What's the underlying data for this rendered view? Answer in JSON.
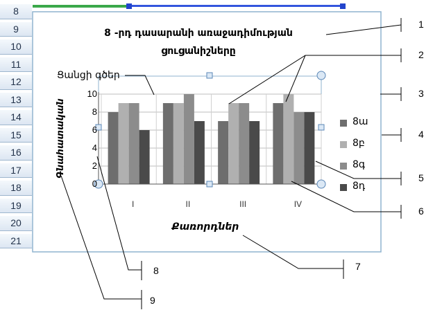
{
  "spreadsheet": {
    "row_numbers": [
      "8",
      "9",
      "10",
      "11",
      "12",
      "13",
      "14",
      "15",
      "16",
      "17",
      "18",
      "19",
      "20",
      "21"
    ]
  },
  "callouts": [
    "1",
    "2",
    "3",
    "4",
    "5",
    "6",
    "7",
    "8",
    "9"
  ],
  "chart_data": {
    "type": "bar",
    "title": "8 -րդ դասարանի առաջադիմության ցուցանիշները",
    "title_annotation": "Ցանցի գծեր",
    "xlabel": "Քառորդներ",
    "ylabel": "Գնահատական",
    "categories": [
      "I",
      "II",
      "III",
      "IV"
    ],
    "ylim": [
      0,
      10
    ],
    "yticks": [
      "0",
      "2",
      "4",
      "6",
      "8",
      "10"
    ],
    "grid": true,
    "legend_position": "right",
    "series": [
      {
        "name": "8ա",
        "color": "#6e6e6e",
        "values": [
          8,
          9,
          7,
          9
        ]
      },
      {
        "name": "8բ",
        "color": "#b0b0b0",
        "values": [
          9,
          9,
          9,
          10
        ]
      },
      {
        "name": "8գ",
        "color": "#8c8c8c",
        "values": [
          9,
          10,
          9,
          8
        ]
      },
      {
        "name": "8դ",
        "color": "#4a4a4a",
        "values": [
          6,
          7,
          7,
          8
        ]
      }
    ]
  }
}
